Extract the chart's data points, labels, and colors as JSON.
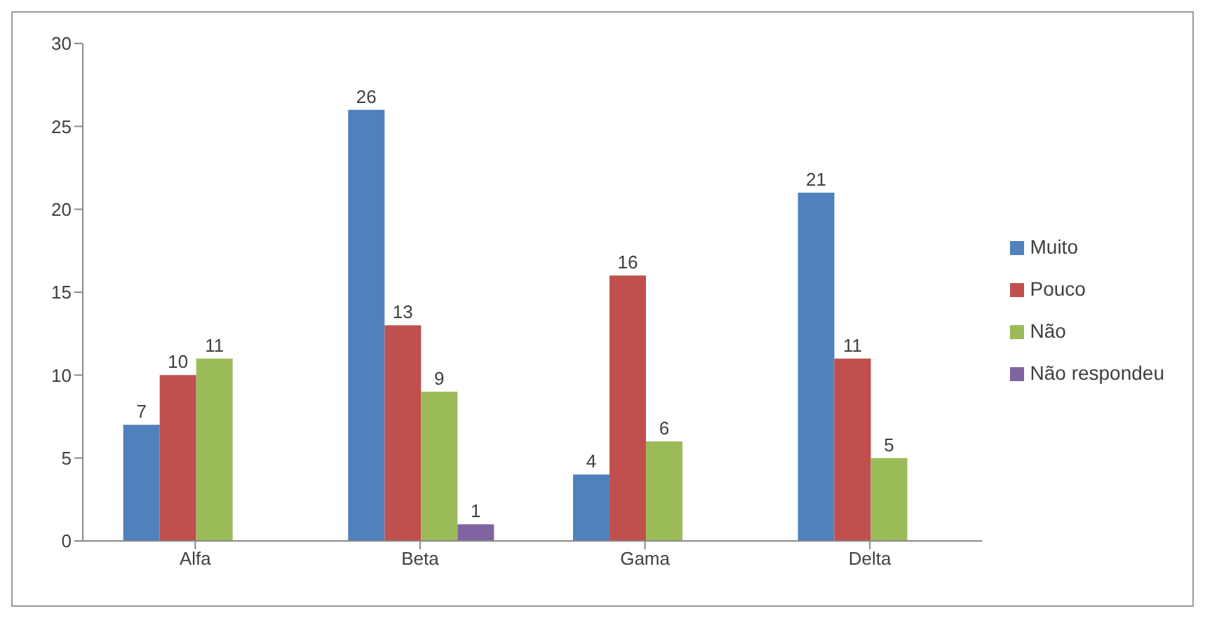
{
  "chart_data": {
    "type": "bar",
    "categories": [
      "Alfa",
      "Beta",
      "Gama",
      "Delta"
    ],
    "series": [
      {
        "name": "Muito",
        "color": "#4f81bd",
        "values": [
          7,
          26,
          4,
          21
        ]
      },
      {
        "name": "Pouco",
        "color": "#c0504d",
        "values": [
          10,
          13,
          16,
          11
        ]
      },
      {
        "name": "Não",
        "color": "#9bbb59",
        "values": [
          11,
          9,
          6,
          5
        ]
      },
      {
        "name": "Não respondeu",
        "color": "#8064a2",
        "values": [
          null,
          1,
          null,
          null
        ]
      }
    ],
    "ylim": [
      0,
      30
    ],
    "yticks": [
      0,
      5,
      10,
      15,
      20,
      25,
      30
    ],
    "grid": false,
    "legend": "right",
    "data_labels": true
  }
}
